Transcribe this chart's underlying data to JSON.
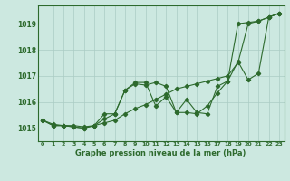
{
  "title": "Graphe pression niveau de la mer (hPa)",
  "background_color": "#cce8e0",
  "grid_color": "#aaccc4",
  "line_color": "#2d6a2d",
  "xlim": [
    -0.5,
    23.5
  ],
  "ylim": [
    1014.5,
    1019.7
  ],
  "yticks": [
    1015,
    1016,
    1017,
    1018,
    1019
  ],
  "xticks": [
    0,
    1,
    2,
    3,
    4,
    5,
    6,
    7,
    8,
    9,
    10,
    11,
    12,
    13,
    14,
    15,
    16,
    17,
    18,
    19,
    20,
    21,
    22,
    23
  ],
  "series": [
    [
      1015.3,
      1015.15,
      1015.1,
      1015.1,
      1015.05,
      1015.1,
      1015.2,
      1015.3,
      1015.55,
      1015.75,
      1015.9,
      1016.1,
      1016.3,
      1016.5,
      1016.6,
      1016.7,
      1016.8,
      1016.9,
      1017.0,
      1017.5,
      1019.0,
      1019.1,
      1019.25,
      1019.4
    ],
    [
      1015.3,
      1015.1,
      1015.1,
      1015.05,
      1015.0,
      1015.1,
      1015.35,
      1015.55,
      1016.45,
      1016.7,
      1016.65,
      1016.75,
      1016.6,
      1015.6,
      1015.6,
      1015.55,
      1015.85,
      1016.35,
      1016.8,
      1017.55,
      1016.85,
      1017.1,
      1019.25,
      1019.4
    ],
    [
      1015.3,
      1015.1,
      1015.1,
      1015.05,
      1015.0,
      1015.1,
      1015.55,
      1015.55,
      1016.45,
      1016.75,
      1016.75,
      1015.85,
      1016.2,
      1015.6,
      1016.1,
      1015.6,
      1015.55,
      1016.6,
      1016.8,
      1019.0,
      1019.05,
      1019.1,
      1019.25,
      1019.4
    ]
  ]
}
